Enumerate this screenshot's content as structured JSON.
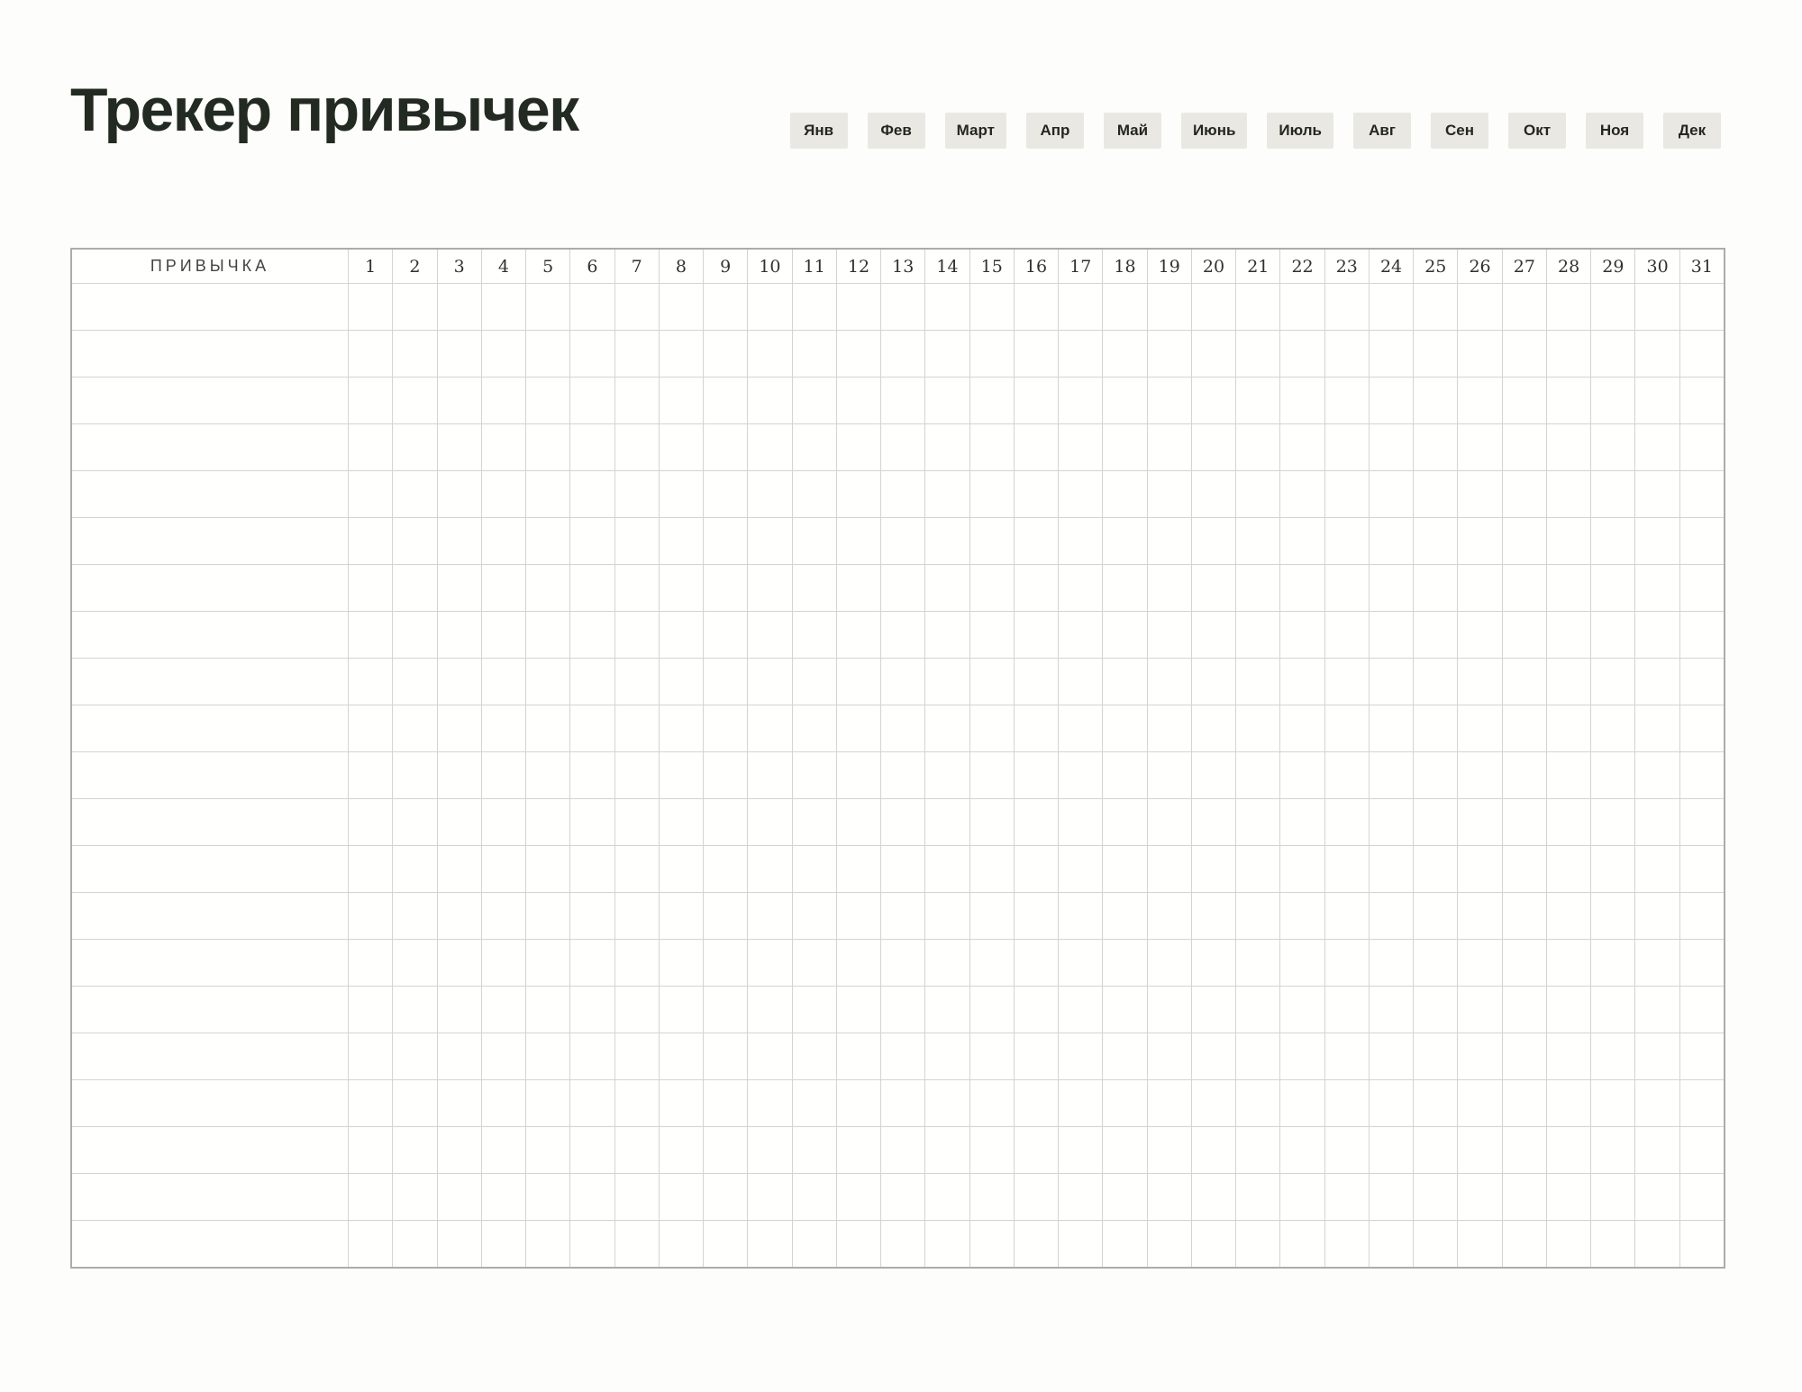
{
  "title": "Трекер привычек",
  "months": [
    "Янв",
    "Фев",
    "Март",
    "Апр",
    "Май",
    "Июнь",
    "Июль",
    "Авг",
    "Сен",
    "Окт",
    "Ноя",
    "Дек"
  ],
  "table": {
    "habit_header": "ПРИВЫЧКА",
    "days": [
      "1",
      "2",
      "3",
      "4",
      "5",
      "6",
      "7",
      "8",
      "9",
      "10",
      "11",
      "12",
      "13",
      "14",
      "15",
      "16",
      "17",
      "18",
      "19",
      "20",
      "21",
      "22",
      "23",
      "24",
      "25",
      "26",
      "27",
      "28",
      "29",
      "30",
      "31"
    ],
    "rows": [
      {
        "habit": ""
      },
      {
        "habit": ""
      },
      {
        "habit": ""
      },
      {
        "habit": ""
      },
      {
        "habit": ""
      },
      {
        "habit": ""
      },
      {
        "habit": ""
      },
      {
        "habit": ""
      },
      {
        "habit": ""
      },
      {
        "habit": ""
      },
      {
        "habit": ""
      },
      {
        "habit": ""
      },
      {
        "habit": ""
      },
      {
        "habit": ""
      },
      {
        "habit": ""
      },
      {
        "habit": ""
      },
      {
        "habit": ""
      },
      {
        "habit": ""
      },
      {
        "habit": ""
      },
      {
        "habit": ""
      },
      {
        "habit": ""
      }
    ]
  },
  "colors": {
    "title_text": "#232a21",
    "tab_background": "#e9e8e3",
    "tab_text": "#24271f",
    "grid_line": "#d6d4cd",
    "grid_outer_border": "#aeaca5",
    "header_text": "#45443f",
    "day_number_text": "#33312c",
    "page_background": "#fdfdfb"
  }
}
